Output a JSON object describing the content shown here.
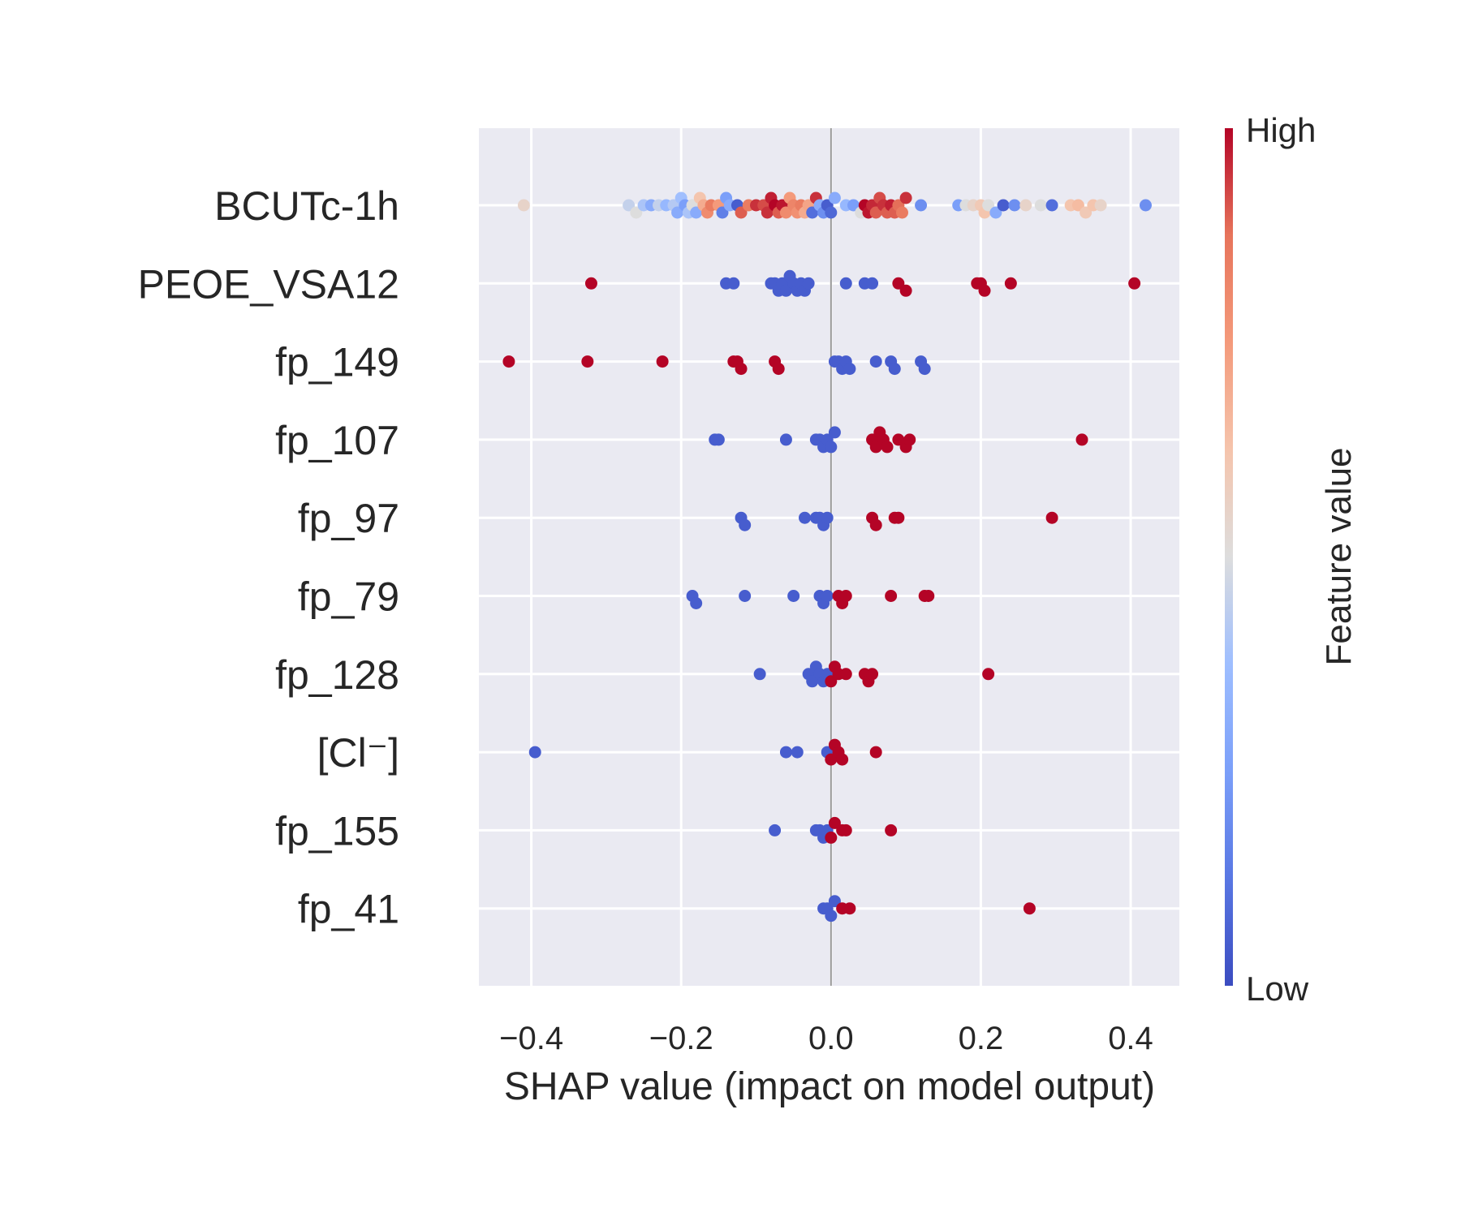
{
  "chart_data": {
    "type": "scatter",
    "title": "",
    "xlabel": "SHAP value (impact on model output)",
    "ylabel": "",
    "xlim": [
      -0.47,
      0.465
    ],
    "x_ticks": [
      -0.4,
      -0.2,
      0.0,
      0.2,
      0.4
    ],
    "x_tick_labels": [
      "−0.4",
      "−0.2",
      "0.0",
      "0.2",
      "0.4"
    ],
    "grid": true,
    "zero_line": 0.0,
    "colormap": {
      "name": "coolwarm",
      "low_color": "#3b4cc0",
      "mid_color": "#dddddd",
      "high_color": "#b40426",
      "title": "Feature value",
      "high_label": "High",
      "low_label": "Low"
    },
    "features": [
      {
        "name": "BCUTc-1h",
        "points": [
          [
            -0.41,
            0.55
          ],
          [
            -0.27,
            0.45
          ],
          [
            -0.26,
            0.5
          ],
          [
            -0.25,
            0.4
          ],
          [
            -0.24,
            0.3
          ],
          [
            -0.23,
            0.45
          ],
          [
            -0.22,
            0.35
          ],
          [
            -0.21,
            0.42
          ],
          [
            -0.205,
            0.3
          ],
          [
            -0.2,
            0.38
          ],
          [
            -0.195,
            0.25
          ],
          [
            -0.19,
            0.4
          ],
          [
            -0.185,
            0.5
          ],
          [
            -0.18,
            0.3
          ],
          [
            -0.175,
            0.62
          ],
          [
            -0.17,
            0.7
          ],
          [
            -0.165,
            0.8
          ],
          [
            -0.16,
            0.85
          ],
          [
            -0.15,
            0.75
          ],
          [
            -0.145,
            0.15
          ],
          [
            -0.14,
            0.25
          ],
          [
            -0.135,
            0.3
          ],
          [
            -0.125,
            0.05
          ],
          [
            -0.12,
            0.9
          ],
          [
            -0.11,
            0.85
          ],
          [
            -0.1,
            0.95
          ],
          [
            -0.09,
            0.92
          ],
          [
            -0.085,
            0.95
          ],
          [
            -0.08,
            0.97
          ],
          [
            -0.075,
            1.0
          ],
          [
            -0.07,
            0.9
          ],
          [
            -0.065,
            0.98
          ],
          [
            -0.06,
            0.8
          ],
          [
            -0.055,
            0.75
          ],
          [
            -0.05,
            0.82
          ],
          [
            -0.045,
            0.78
          ],
          [
            -0.04,
            0.85
          ],
          [
            -0.035,
            0.7
          ],
          [
            -0.03,
            0.72
          ],
          [
            -0.025,
            0.1
          ],
          [
            -0.02,
            0.95
          ],
          [
            -0.015,
            0.3
          ],
          [
            -0.01,
            0.2
          ],
          [
            -0.005,
            0.05
          ],
          [
            0.0,
            0.08
          ],
          [
            0.005,
            0.3
          ],
          [
            0.02,
            0.35
          ],
          [
            0.03,
            0.25
          ],
          [
            0.04,
            0.5
          ],
          [
            0.045,
            1.0
          ],
          [
            0.05,
            0.98
          ],
          [
            0.055,
            0.96
          ],
          [
            0.06,
            0.9
          ],
          [
            0.065,
            0.92
          ],
          [
            0.07,
            0.95
          ],
          [
            0.075,
            0.9
          ],
          [
            0.08,
            0.97
          ],
          [
            0.085,
            0.9
          ],
          [
            0.09,
            0.88
          ],
          [
            0.095,
            0.85
          ],
          [
            0.1,
            0.95
          ],
          [
            0.12,
            0.2
          ],
          [
            0.17,
            0.25
          ],
          [
            0.18,
            0.5
          ],
          [
            0.19,
            0.55
          ],
          [
            0.2,
            0.6
          ],
          [
            0.205,
            0.62
          ],
          [
            0.21,
            0.5
          ],
          [
            0.22,
            0.3
          ],
          [
            0.23,
            0.05
          ],
          [
            0.245,
            0.2
          ],
          [
            0.26,
            0.55
          ],
          [
            0.28,
            0.5
          ],
          [
            0.295,
            0.1
          ],
          [
            0.32,
            0.62
          ],
          [
            0.33,
            0.65
          ],
          [
            0.34,
            0.6
          ],
          [
            0.35,
            0.62
          ],
          [
            0.36,
            0.55
          ],
          [
            0.42,
            0.2
          ]
        ]
      },
      {
        "name": "PEOE_VSA12",
        "points": [
          [
            -0.32,
            1.0
          ],
          [
            -0.14,
            0.05
          ],
          [
            -0.13,
            0.05
          ],
          [
            -0.08,
            0.05
          ],
          [
            -0.075,
            0.05
          ],
          [
            -0.07,
            0.05
          ],
          [
            -0.065,
            0.05
          ],
          [
            -0.06,
            0.05
          ],
          [
            -0.055,
            0.05
          ],
          [
            -0.05,
            0.05
          ],
          [
            -0.045,
            0.05
          ],
          [
            -0.04,
            0.05
          ],
          [
            -0.035,
            0.05
          ],
          [
            -0.03,
            0.05
          ],
          [
            0.02,
            0.05
          ],
          [
            0.045,
            0.05
          ],
          [
            0.055,
            0.05
          ],
          [
            0.09,
            1.0
          ],
          [
            0.1,
            1.0
          ],
          [
            0.195,
            1.0
          ],
          [
            0.2,
            1.0
          ],
          [
            0.205,
            1.0
          ],
          [
            0.24,
            1.0
          ],
          [
            0.405,
            1.0
          ]
        ]
      },
      {
        "name": "fp_149",
        "points": [
          [
            -0.43,
            1.0
          ],
          [
            -0.325,
            1.0
          ],
          [
            -0.225,
            1.0
          ],
          [
            -0.13,
            1.0
          ],
          [
            -0.125,
            1.0
          ],
          [
            -0.12,
            1.0
          ],
          [
            -0.075,
            1.0
          ],
          [
            -0.07,
            1.0
          ],
          [
            0.005,
            0.05
          ],
          [
            0.01,
            0.05
          ],
          [
            0.015,
            0.05
          ],
          [
            0.02,
            0.05
          ],
          [
            0.025,
            0.05
          ],
          [
            0.06,
            0.05
          ],
          [
            0.08,
            0.05
          ],
          [
            0.085,
            0.05
          ],
          [
            0.12,
            0.05
          ],
          [
            0.125,
            0.05
          ]
        ]
      },
      {
        "name": "fp_107",
        "points": [
          [
            -0.155,
            0.05
          ],
          [
            -0.15,
            0.05
          ],
          [
            -0.06,
            0.05
          ],
          [
            -0.02,
            0.05
          ],
          [
            -0.015,
            0.05
          ],
          [
            -0.01,
            0.05
          ],
          [
            -0.005,
            0.05
          ],
          [
            0.0,
            0.05
          ],
          [
            0.005,
            0.05
          ],
          [
            0.055,
            1.0
          ],
          [
            0.06,
            1.0
          ],
          [
            0.065,
            1.0
          ],
          [
            0.07,
            1.0
          ],
          [
            0.075,
            1.0
          ],
          [
            0.09,
            1.0
          ],
          [
            0.1,
            1.0
          ],
          [
            0.105,
            1.0
          ],
          [
            0.335,
            1.0
          ]
        ]
      },
      {
        "name": "fp_97",
        "points": [
          [
            -0.12,
            0.05
          ],
          [
            -0.115,
            0.05
          ],
          [
            -0.035,
            0.05
          ],
          [
            -0.02,
            0.05
          ],
          [
            -0.015,
            0.05
          ],
          [
            -0.01,
            0.05
          ],
          [
            -0.005,
            0.05
          ],
          [
            0.055,
            1.0
          ],
          [
            0.06,
            1.0
          ],
          [
            0.085,
            1.0
          ],
          [
            0.09,
            1.0
          ],
          [
            0.295,
            1.0
          ]
        ]
      },
      {
        "name": "fp_79",
        "points": [
          [
            -0.185,
            0.05
          ],
          [
            -0.18,
            0.05
          ],
          [
            -0.115,
            0.05
          ],
          [
            -0.05,
            0.05
          ],
          [
            -0.015,
            0.05
          ],
          [
            -0.01,
            0.05
          ],
          [
            -0.005,
            0.05
          ],
          [
            0.01,
            1.0
          ],
          [
            0.015,
            1.0
          ],
          [
            0.02,
            1.0
          ],
          [
            0.08,
            1.0
          ],
          [
            0.125,
            1.0
          ],
          [
            0.13,
            1.0
          ]
        ]
      },
      {
        "name": "fp_128",
        "points": [
          [
            -0.095,
            0.05
          ],
          [
            -0.03,
            0.05
          ],
          [
            -0.025,
            0.05
          ],
          [
            -0.02,
            0.05
          ],
          [
            -0.015,
            0.05
          ],
          [
            -0.01,
            0.05
          ],
          [
            -0.005,
            0.05
          ],
          [
            0.0,
            1.0
          ],
          [
            0.005,
            1.0
          ],
          [
            0.01,
            1.0
          ],
          [
            0.02,
            1.0
          ],
          [
            0.045,
            1.0
          ],
          [
            0.05,
            1.0
          ],
          [
            0.055,
            1.0
          ],
          [
            0.21,
            1.0
          ]
        ]
      },
      {
        "name": "[Cl⁻]",
        "points": [
          [
            -0.395,
            0.05
          ],
          [
            -0.06,
            0.05
          ],
          [
            -0.045,
            0.05
          ],
          [
            -0.005,
            0.05
          ],
          [
            0.0,
            1.0
          ],
          [
            0.005,
            1.0
          ],
          [
            0.01,
            1.0
          ],
          [
            0.015,
            1.0
          ],
          [
            0.06,
            1.0
          ]
        ]
      },
      {
        "name": "fp_155",
        "points": [
          [
            -0.075,
            0.05
          ],
          [
            -0.02,
            0.05
          ],
          [
            -0.015,
            0.05
          ],
          [
            -0.01,
            0.05
          ],
          [
            -0.005,
            0.05
          ],
          [
            0.0,
            1.0
          ],
          [
            0.005,
            1.0
          ],
          [
            0.015,
            1.0
          ],
          [
            0.02,
            1.0
          ],
          [
            0.08,
            1.0
          ]
        ]
      },
      {
        "name": "fp_41",
        "points": [
          [
            -0.01,
            0.05
          ],
          [
            -0.005,
            0.05
          ],
          [
            0.0,
            0.05
          ],
          [
            0.005,
            0.05
          ],
          [
            0.015,
            1.0
          ],
          [
            0.025,
            1.0
          ],
          [
            0.265,
            1.0
          ]
        ]
      }
    ]
  }
}
